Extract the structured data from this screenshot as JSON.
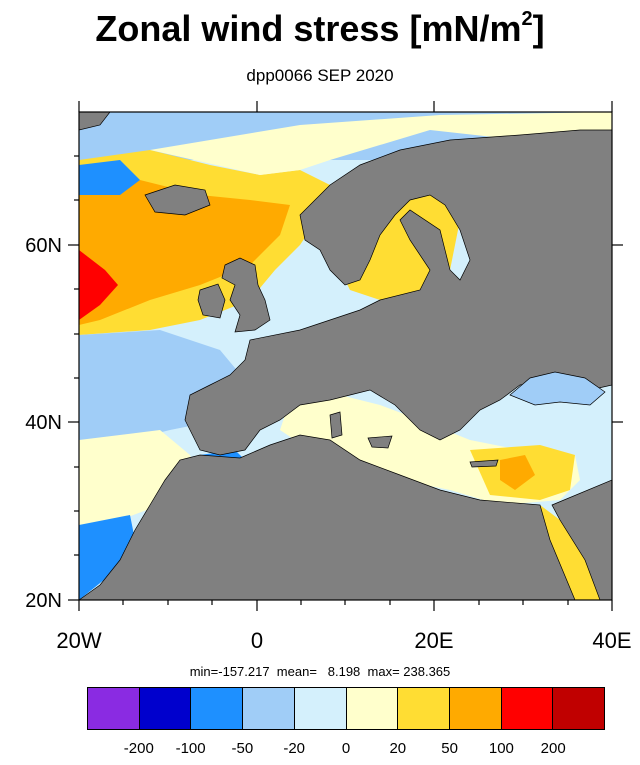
{
  "title": "Zonal wind stress [mN/m",
  "title_sup": "2",
  "title_end": "]",
  "subtitle": "dpp0066 SEP 2020",
  "map": {
    "lat_labels": [
      "60N",
      "40N",
      "20N"
    ],
    "lon_labels": [
      "20W",
      "0",
      "20E",
      "40E"
    ],
    "land_color": "#808080",
    "lon_range": [
      -20,
      40
    ],
    "lat_range": [
      20,
      75
    ]
  },
  "stats": {
    "text": "min=-157.217  mean=   8.198  max= 238.365"
  },
  "colorbar": {
    "colors": [
      "#8a2be2",
      "#0000cd",
      "#1e90ff",
      "#a0cdf7",
      "#d4f0fc",
      "#ffffcc",
      "#ffdd33",
      "#ffaa00",
      "#ff0000",
      "#c00000"
    ],
    "labels": [
      "-200",
      "-100",
      "-50",
      "-20",
      "0",
      "20",
      "50",
      "100",
      "200"
    ]
  }
}
